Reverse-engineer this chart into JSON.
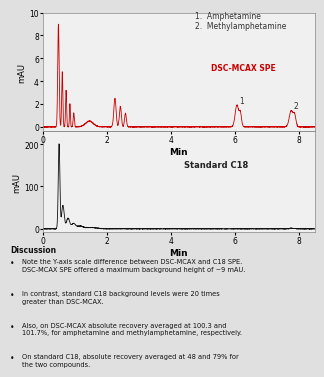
{
  "bg_color": "#e0e0e0",
  "plot_bg": "#f0f0f0",
  "top_plot": {
    "color": "#cc0000",
    "label": "DSC-MCAX SPE",
    "ylabel": "mAU",
    "ylim": [
      -0.4,
      10
    ],
    "yticks": [
      0,
      2,
      4,
      6,
      8,
      10
    ],
    "xlim": [
      0,
      8.5
    ],
    "xticks": [
      0,
      2,
      4,
      6,
      8
    ],
    "xlabel": "Min",
    "peak1_x": 6.05,
    "peak1_label": "1",
    "peak2_x": 7.75,
    "peak2_label": "2"
  },
  "bottom_plot": {
    "color": "#111111",
    "label": "Standard C18",
    "ylabel": "mAU",
    "ylim": [
      -8,
      230
    ],
    "yticks": [
      0,
      100,
      200
    ],
    "xlim": [
      0,
      8.5
    ],
    "xticks": [
      0,
      2,
      4,
      6,
      8
    ],
    "xlabel": "Min"
  },
  "legend": [
    "1.  Amphetamine",
    "2.  Methylamphetamine"
  ],
  "discussion_title": "Discussion",
  "discussion_bullets": [
    "Note the Y-axis scale difference between DSC-MCAX and C18 SPE. DSC-MCAX SPE offered a maximum background height of ~9 mAU.",
    "In contrast, standard C18 background levels were 20 times greater than DSC-MCAX.",
    "Also, on DSC-MCAX absolute recovery averaged at 100.3 and 101.7%, for amphetamine and methylamphetamine, respectively.",
    "On standard C18, absolute recovery averaged at 48 and 79% for the two compounds."
  ]
}
